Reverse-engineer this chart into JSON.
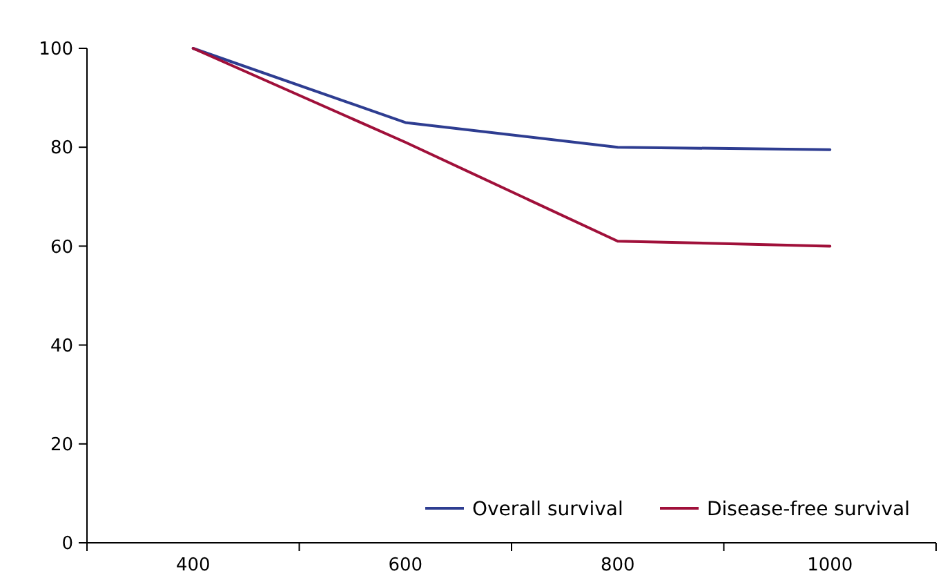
{
  "chart_data": {
    "type": "line",
    "categories": [
      "400",
      "600",
      "800",
      "1000"
    ],
    "series": [
      {
        "name": "Overall survival",
        "color": "#2e3d91",
        "values": [
          100,
          85,
          80,
          79.5
        ]
      },
      {
        "name": "Disease-free survival",
        "color": "#a0103a",
        "values": [
          100,
          81,
          61,
          60
        ]
      }
    ],
    "ylim": [
      0,
      100
    ],
    "yticks": [
      0,
      20,
      40,
      60,
      80,
      100
    ],
    "grid": false,
    "legend": "bottom right",
    "marker": "none",
    "line_style": "solid"
  }
}
